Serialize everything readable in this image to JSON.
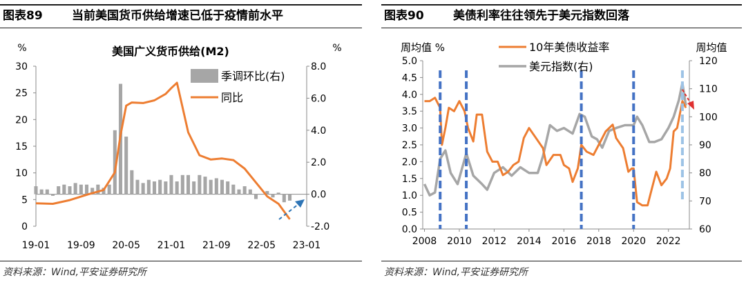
{
  "left": {
    "number": "图表89",
    "title": "当前美国货币供给增速已低于疫情前水平",
    "source": "资料来源：Wind,平安证券研究所"
  },
  "right": {
    "number": "图表90",
    "title": "美债利率往往领先于美元指数回落",
    "source": "资料来源：Wind,平安证券研究所"
  },
  "chart_data": [
    {
      "type": "bar+line",
      "title": "美国广义货币供给(M2)",
      "left_unit": "%",
      "right_unit": "%",
      "y_left": {
        "min": 0,
        "max": 30,
        "ticks": [
          "0",
          "5",
          "10",
          "15",
          "20",
          "25",
          "30"
        ]
      },
      "y_right": {
        "min": -2,
        "max": 8,
        "ticks": [
          "-2.0",
          "0.0",
          "2.0",
          "4.0",
          "6.0",
          "8.0"
        ]
      },
      "x_ticks": [
        "19-01",
        "19-09",
        "20-05",
        "21-01",
        "21-09",
        "22-05",
        "23-01"
      ],
      "legend": [
        "季调环比(右)",
        "同比"
      ],
      "colors": {
        "bar": "#a6a6a6",
        "line": "#ed7d31",
        "arrow": "#2e75b6"
      },
      "series": [
        {
          "name": "季调环比(右)",
          "axis": "right",
          "kind": "bar",
          "x": [
            "19-01",
            "19-02",
            "19-03",
            "19-04",
            "19-05",
            "19-06",
            "19-07",
            "19-08",
            "19-09",
            "19-10",
            "19-11",
            "19-12",
            "20-01",
            "20-02",
            "20-03",
            "20-04",
            "20-05",
            "20-06",
            "20-07",
            "20-08",
            "20-09",
            "20-10",
            "20-11",
            "20-12",
            "21-01",
            "21-02",
            "21-03",
            "21-04",
            "21-05",
            "21-06",
            "21-07",
            "21-08",
            "21-09",
            "21-10",
            "21-11",
            "21-12",
            "22-01",
            "22-02",
            "22-03",
            "22-04",
            "22-05",
            "22-06",
            "22-07",
            "22-08",
            "22-09",
            "22-10"
          ],
          "values": [
            0.5,
            0.3,
            0.3,
            -0.1,
            0.5,
            0.6,
            0.5,
            0.7,
            0.6,
            0.6,
            0.4,
            0.6,
            0.4,
            0.6,
            4.0,
            6.9,
            3.6,
            1.5,
            0.9,
            0.7,
            0.9,
            0.8,
            0.9,
            0.8,
            1.2,
            0.8,
            1.2,
            1.2,
            0.8,
            1.2,
            1.1,
            0.9,
            1.0,
            0.9,
            0.8,
            0.6,
            0.3,
            0.5,
            0.3,
            -0.3,
            0.0,
            0.2,
            -0.2,
            0.1,
            -0.5,
            -0.4
          ]
        },
        {
          "name": "同比",
          "axis": "left",
          "kind": "line",
          "x": [
            "19-01",
            "19-04",
            "19-07",
            "19-10",
            "20-01",
            "20-03",
            "20-04",
            "20-05",
            "20-06",
            "20-08",
            "20-10",
            "20-12",
            "21-01",
            "21-02",
            "21-04",
            "21-06",
            "21-08",
            "21-10",
            "21-12",
            "22-02",
            "22-04",
            "22-06",
            "22-08",
            "22-10"
          ],
          "values": [
            4.3,
            4.2,
            4.9,
            5.9,
            6.8,
            10.1,
            17.1,
            22.6,
            23.2,
            23.1,
            23.6,
            24.8,
            25.9,
            26.9,
            17.6,
            13.3,
            12.5,
            12.7,
            12.4,
            10.8,
            8.2,
            5.6,
            4.2,
            1.3
          ]
        }
      ],
      "annotation": "blue dashed arrow pointing up-right after the last data point"
    },
    {
      "type": "line",
      "title": "",
      "left_unit": "周均值 %",
      "right_unit": "周均值",
      "y_left": {
        "min": 0.0,
        "max": 5.0,
        "ticks": [
          "0.0",
          "0.5",
          "1.0",
          "1.5",
          "2.0",
          "2.5",
          "3.0",
          "3.5",
          "4.0",
          "4.5",
          "5.0"
        ]
      },
      "y_right": {
        "min": 60,
        "max": 120,
        "ticks": [
          "60",
          "70",
          "80",
          "90",
          "100",
          "110",
          "120"
        ]
      },
      "x_ticks": [
        "2008",
        "2010",
        "2012",
        "2014",
        "2016",
        "2018",
        "2020",
        "2022"
      ],
      "x_range": [
        2007.9,
        2023.2
      ],
      "legend": [
        "10年美债收益率",
        "美元指数(右)"
      ],
      "colors": {
        "yield": "#ed7d31",
        "dxy": "#a6a6a6",
        "markers": "#4472c4",
        "last_marker": "#9dc3e6",
        "arrow": "#e03030"
      },
      "series": [
        {
          "name": "10年美债收益率",
          "axis": "left",
          "x": [
            2008.0,
            2008.3,
            2008.6,
            2008.9,
            2009.0,
            2009.2,
            2009.4,
            2009.7,
            2010.0,
            2010.3,
            2010.5,
            2010.8,
            2011.0,
            2011.3,
            2011.6,
            2011.9,
            2012.2,
            2012.5,
            2012.8,
            2013.1,
            2013.4,
            2013.7,
            2014.0,
            2014.4,
            2014.8,
            2015.0,
            2015.4,
            2015.8,
            2016.0,
            2016.3,
            2016.5,
            2016.8,
            2017.0,
            2017.3,
            2017.7,
            2018.0,
            2018.4,
            2018.8,
            2019.0,
            2019.4,
            2019.7,
            2019.9,
            2020.0,
            2020.2,
            2020.5,
            2020.8,
            2021.0,
            2021.3,
            2021.6,
            2021.9,
            2022.1,
            2022.3,
            2022.5,
            2022.8,
            2023.0
          ],
          "values": [
            3.8,
            3.8,
            3.9,
            3.6,
            2.5,
            3.0,
            3.6,
            3.5,
            3.8,
            3.5,
            3.0,
            2.6,
            3.4,
            3.4,
            2.3,
            2.0,
            2.0,
            1.6,
            1.7,
            1.9,
            2.0,
            2.7,
            3.0,
            2.7,
            2.4,
            1.9,
            2.2,
            2.2,
            1.9,
            1.8,
            1.4,
            1.8,
            2.5,
            2.3,
            2.2,
            2.5,
            2.9,
            3.1,
            2.7,
            2.4,
            1.7,
            1.8,
            1.8,
            0.8,
            0.7,
            0.7,
            1.1,
            1.7,
            1.3,
            1.5,
            1.8,
            2.9,
            3.0,
            3.8,
            3.6
          ]
        },
        {
          "name": "美元指数(右)",
          "axis": "right",
          "x": [
            2008.0,
            2008.3,
            2008.6,
            2008.9,
            2009.2,
            2009.5,
            2009.9,
            2010.4,
            2010.8,
            2011.3,
            2011.6,
            2012.0,
            2012.5,
            2013.0,
            2013.5,
            2014.0,
            2014.5,
            2014.8,
            2015.2,
            2015.6,
            2016.0,
            2016.5,
            2016.9,
            2017.2,
            2017.6,
            2017.9,
            2018.2,
            2018.6,
            2019.0,
            2019.5,
            2020.0,
            2020.2,
            2020.5,
            2020.9,
            2021.2,
            2021.6,
            2022.0,
            2022.3,
            2022.6,
            2022.8,
            2023.0
          ],
          "values": [
            76,
            72,
            73,
            85,
            88,
            80,
            76,
            87,
            79,
            76,
            74,
            80,
            82,
            79,
            82,
            80,
            80,
            86,
            97,
            95,
            96,
            94,
            101,
            100,
            93,
            92,
            89,
            95,
            96,
            97,
            97,
            100,
            97,
            91,
            91,
            92,
            96,
            100,
            106,
            112,
            104
          ]
        }
      ],
      "markers": [
        "2008.9",
        "2010.4",
        "2017.0",
        "2020.0",
        "2022.8"
      ],
      "annotation": "red dashed arrow pointing down-right at the last peak"
    }
  ]
}
